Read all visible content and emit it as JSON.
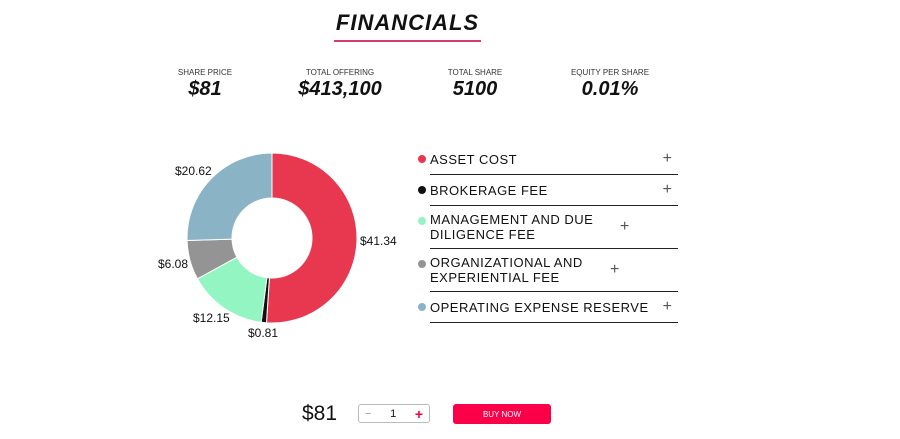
{
  "title": "FINANCIALS",
  "stats": [
    {
      "label": "SHARE PRICE",
      "value": "$81"
    },
    {
      "label": "TOTAL OFFERING",
      "value": "$413,100"
    },
    {
      "label": "TOTAL SHARE",
      "value": "5100"
    },
    {
      "label": "EQUITY PER SHARE",
      "value": "0.01%"
    }
  ],
  "chart_data": {
    "type": "pie",
    "donut": true,
    "categories": [
      "ASSET COST",
      "BROKERAGE FEE",
      "MANAGEMENT AND DUE DILIGENCE FEE",
      "ORGANIZATIONAL AND EXPERIENTIAL FEE",
      "OPERATING EXPENSE RESERVE"
    ],
    "values": [
      41.34,
      0.81,
      12.15,
      6.08,
      20.62
    ],
    "labels": [
      "$41.34",
      "$0.81",
      "$12.15",
      "$6.08",
      "$20.62"
    ],
    "colors": [
      "#e8384f",
      "#111111",
      "#93f5c2",
      "#949494",
      "#8ab4c6"
    ]
  },
  "legend": [
    {
      "label": "ASSET COST",
      "color": "#e8384f"
    },
    {
      "label": "BROKERAGE FEE",
      "color": "#111111"
    },
    {
      "label": "MANAGEMENT AND DUE DILIGENCE FEE",
      "color": "#93f5c2"
    },
    {
      "label": "ORGANIZATIONAL AND EXPERIENTIAL FEE",
      "color": "#949494"
    },
    {
      "label": "OPERATING EXPENSE RESERVE",
      "color": "#8ab4c6"
    }
  ],
  "expand_icon": "+",
  "buy": {
    "price": "$81",
    "quantity": "1",
    "minus": "−",
    "plus": "+",
    "button": "BUY NOW"
  }
}
